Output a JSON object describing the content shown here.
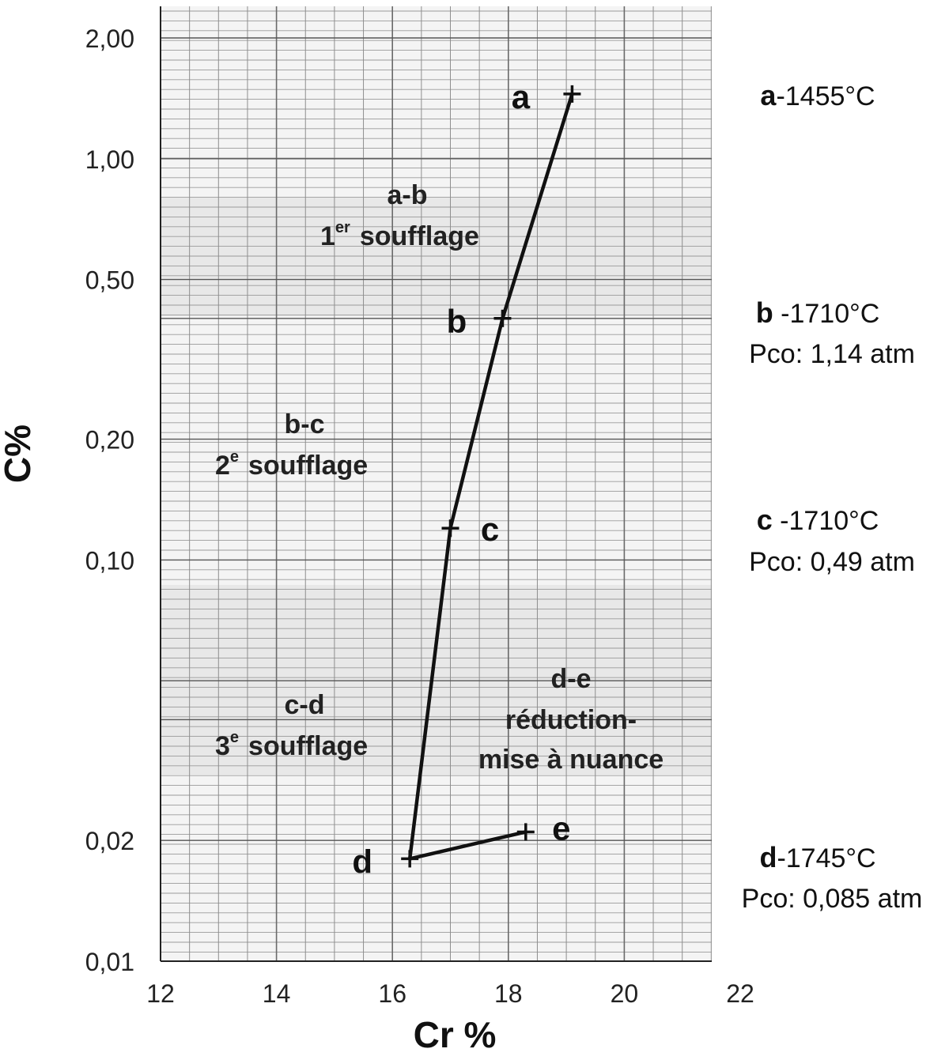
{
  "chart_data": {
    "type": "line",
    "xlabel": "Cr %",
    "ylabel": "C%",
    "xlim": [
      12,
      22
    ],
    "ylim": [
      0.01,
      2.2
    ],
    "y_scale": "log",
    "x_ticks": [
      "12",
      "14",
      "16",
      "18",
      "20",
      "22"
    ],
    "y_ticks": [
      {
        "value": 2.0,
        "label": "2,00"
      },
      {
        "value": 1.0,
        "label": "1,00"
      },
      {
        "value": 0.5,
        "label": "0,50"
      },
      {
        "value": 0.2,
        "label": "0,20"
      },
      {
        "value": 0.1,
        "label": "0,10"
      },
      {
        "value": 0.02,
        "label": "0,02"
      },
      {
        "value": 0.01,
        "label": "0,01"
      }
    ],
    "grid": true,
    "points": [
      {
        "id": "a",
        "label": "a",
        "x": 19.1,
        "y": 1.45
      },
      {
        "id": "b",
        "label": "b",
        "x": 17.9,
        "y": 0.4
      },
      {
        "id": "c",
        "label": "c",
        "x": 17.0,
        "y": 0.12
      },
      {
        "id": "d",
        "label": "d",
        "x": 16.3,
        "y": 0.018
      },
      {
        "id": "e",
        "label": "e",
        "x": 18.3,
        "y": 0.021
      }
    ],
    "zones": [
      {
        "id": "a-b",
        "line1": "a-b",
        "ordinal": "1",
        "sup": "er",
        "word": "soufflage"
      },
      {
        "id": "b-c",
        "line1": "b-c",
        "ordinal": "2",
        "sup": "e",
        "word": "soufflage"
      },
      {
        "id": "c-d",
        "line1": "c-d",
        "ordinal": "3",
        "sup": "e",
        "word": "soufflage"
      },
      {
        "id": "d-e",
        "line1": "d-e",
        "line2": "réduction-",
        "line3": "mise à nuance"
      }
    ],
    "annotations": [
      {
        "id": "a",
        "letter": "a",
        "temp": "-1455°C"
      },
      {
        "id": "b",
        "letter": "b",
        "temp": " -1710°C",
        "pco": "Pco: 1,14 atm"
      },
      {
        "id": "c",
        "letter": "c",
        "temp": " -1710°C",
        "pco": "Pco: 0,49 atm"
      },
      {
        "id": "d",
        "letter": "d",
        "temp": "-1745°C",
        "pco": "Pco: 0,085 atm"
      }
    ]
  }
}
